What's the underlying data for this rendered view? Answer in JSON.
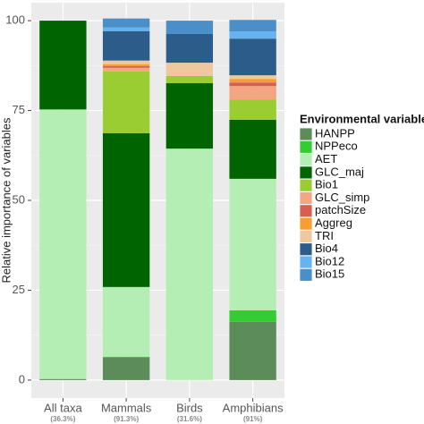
{
  "chart_data": {
    "type": "stacked_bar",
    "y_label": "Relative importance of variables",
    "legend_title": "Environmental variable",
    "categories": [
      "All taxa",
      "Mammals",
      "Birds",
      "Amphibians"
    ],
    "category_notes": [
      "(36.3%)",
      "(91.3%)",
      "(31.6%)",
      "(91%)"
    ],
    "series": [
      {
        "name": "HANPP",
        "color": "#5b8c5a",
        "values": [
          0.3,
          6.2,
          0,
          16.2
        ]
      },
      {
        "name": "NPPeco",
        "color": "#33cc33",
        "values": [
          0,
          0.3,
          0,
          3.2
        ]
      },
      {
        "name": "AET",
        "color": "#b5eeb5",
        "values": [
          75,
          19.4,
          64.4,
          36.6
        ]
      },
      {
        "name": "GLC_maj",
        "color": "#006400",
        "values": [
          24.7,
          42.8,
          18.2,
          16.4
        ]
      },
      {
        "name": "Bio1",
        "color": "#9acd32",
        "values": [
          0,
          17.2,
          2,
          5.7
        ]
      },
      {
        "name": "GLC_simp",
        "color": "#f4a582",
        "values": [
          0,
          1,
          0,
          3.7
        ]
      },
      {
        "name": "patchSize",
        "color": "#d6604d",
        "values": [
          0,
          0.5,
          0,
          1
        ]
      },
      {
        "name": "Aggreg",
        "color": "#f4a030",
        "values": [
          0,
          0.5,
          0,
          1
        ]
      },
      {
        "name": "TRI",
        "color": "#f0c8a0",
        "values": [
          0,
          1,
          3.7,
          1
        ]
      },
      {
        "name": "Bio4",
        "color": "#2b5c8a",
        "values": [
          0,
          8.2,
          8,
          10.2
        ]
      },
      {
        "name": "Bio12",
        "color": "#66b3f0",
        "values": [
          0,
          1,
          0,
          2
        ]
      },
      {
        "name": "Bio15",
        "color": "#4a8fc8",
        "values": [
          0,
          2.5,
          3.7,
          3.2
        ]
      }
    ],
    "ylim": [
      -5,
      105
    ],
    "yticks": [
      0,
      25,
      50,
      75,
      100
    ],
    "grid": true
  }
}
